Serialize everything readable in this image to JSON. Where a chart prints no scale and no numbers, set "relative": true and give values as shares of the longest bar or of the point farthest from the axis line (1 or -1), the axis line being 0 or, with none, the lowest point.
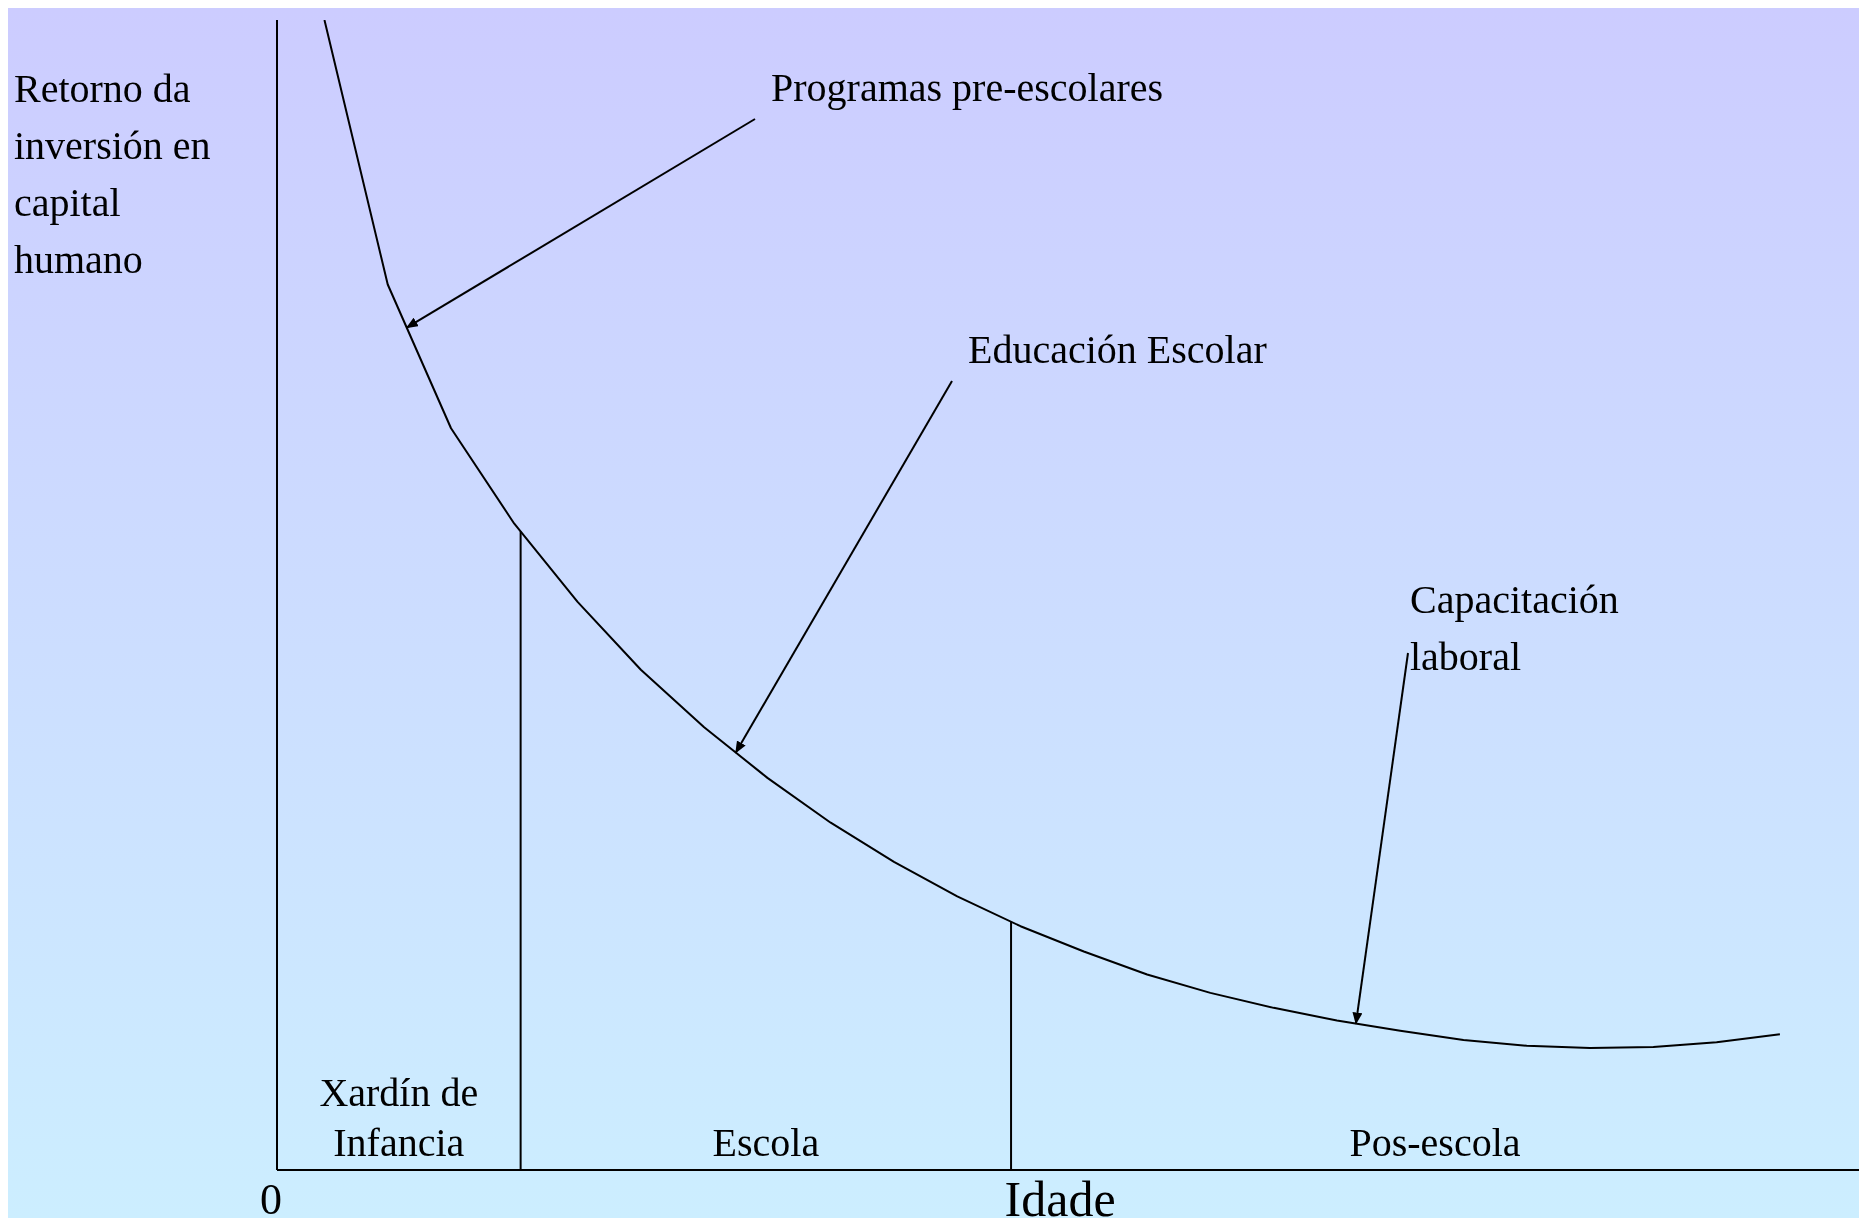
{
  "chart_data": {
    "type": "line",
    "relative": true,
    "ylabel": "Retorno da inversión en capital humano",
    "xlabel": "Idade",
    "categories": [
      null,
      null,
      null,
      null,
      null,
      null,
      null,
      null,
      null,
      null,
      null,
      null,
      null,
      null,
      null,
      null,
      null,
      null,
      null,
      null,
      null,
      null,
      null,
      null
    ],
    "values": [
      1,
      0.77,
      0.645,
      0.562,
      0.494,
      0.435,
      0.385,
      0.341,
      0.302,
      0.268,
      0.238,
      0.212,
      0.19,
      0.17,
      0.154,
      0.141,
      0.13,
      0.121,
      0.113,
      0.108,
      0.106,
      0.107,
      0.111,
      0.118
    ],
    "color": "#000000",
    "annotations": [
      "Programas pre-escolares",
      "Educación Escolar",
      "Capacitación laboral",
      "Xardín de Infancia",
      "Escola",
      "Pos-escola",
      "0"
    ]
  }
}
